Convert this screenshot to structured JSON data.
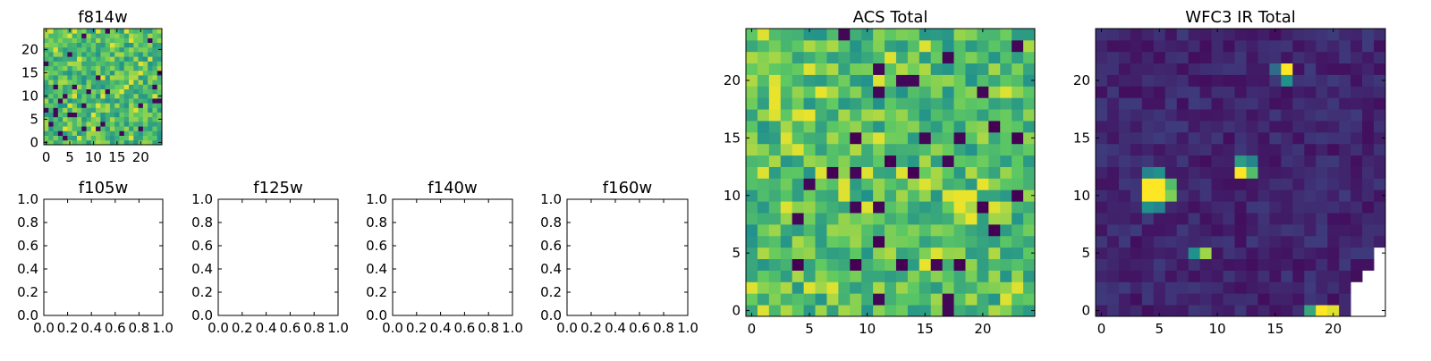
{
  "figure": {
    "background": "#ffffff",
    "colormap": [
      "#440154",
      "#3b528b",
      "#21918c",
      "#5ec962",
      "#fde725"
    ]
  },
  "chart_data": [
    {
      "id": "f814w",
      "type": "heatmap",
      "title": "f814w",
      "grid_size": 25,
      "xlim": [
        -0.5,
        24.5
      ],
      "ylim": [
        -0.5,
        24.5
      ],
      "xticks": [
        0,
        5,
        10,
        15,
        20
      ],
      "yticks": [
        0,
        5,
        10,
        15,
        20
      ],
      "pattern": "acs_noise",
      "seed": 814
    },
    {
      "id": "f105w",
      "type": "empty",
      "title": "f105w",
      "xlim": [
        0,
        1
      ],
      "ylim": [
        0,
        1
      ],
      "xticks": [
        "0.0",
        "0.2",
        "0.4",
        "0.6",
        "0.8",
        "1.0"
      ],
      "yticks": [
        "0.0",
        "0.2",
        "0.4",
        "0.6",
        "0.8",
        "1.0"
      ]
    },
    {
      "id": "f125w",
      "type": "empty",
      "title": "f125w",
      "xlim": [
        0,
        1
      ],
      "ylim": [
        0,
        1
      ],
      "xticks": [
        "0.0",
        "0.2",
        "0.4",
        "0.6",
        "0.8",
        "1.0"
      ],
      "yticks": [
        "0.0",
        "0.2",
        "0.4",
        "0.6",
        "0.8",
        "1.0"
      ]
    },
    {
      "id": "f140w",
      "type": "empty",
      "title": "f140w",
      "xlim": [
        0,
        1
      ],
      "ylim": [
        0,
        1
      ],
      "xticks": [
        "0.0",
        "0.2",
        "0.4",
        "0.6",
        "0.8",
        "1.0"
      ],
      "yticks": [
        "0.0",
        "0.2",
        "0.4",
        "0.6",
        "0.8",
        "1.0"
      ]
    },
    {
      "id": "f160w",
      "type": "empty",
      "title": "f160w",
      "xlim": [
        0,
        1
      ],
      "ylim": [
        0,
        1
      ],
      "xticks": [
        "0.0",
        "0.2",
        "0.4",
        "0.6",
        "0.8",
        "1.0"
      ],
      "yticks": [
        "0.0",
        "0.2",
        "0.4",
        "0.6",
        "0.8",
        "1.0"
      ]
    },
    {
      "id": "acs_total",
      "type": "heatmap",
      "title": "ACS Total",
      "grid_size": 25,
      "xlim": [
        -0.5,
        24.5
      ],
      "ylim": [
        -0.5,
        24.5
      ],
      "xticks": [
        0,
        5,
        10,
        15,
        20
      ],
      "yticks": [
        0,
        5,
        10,
        15,
        20
      ],
      "pattern": "acs_noise",
      "seed": 42,
      "dark_pixels": [
        [
          9,
          4
        ],
        [
          13,
          4
        ],
        [
          18,
          4
        ],
        [
          4,
          4
        ],
        [
          11,
          6
        ],
        [
          21,
          7
        ],
        [
          20,
          9
        ],
        [
          7,
          12
        ],
        [
          14,
          12
        ],
        [
          9,
          15
        ],
        [
          23,
          15
        ],
        [
          21,
          16
        ],
        [
          23,
          10
        ],
        [
          12,
          13
        ]
      ],
      "bright_pixels": [
        [
          18,
          9
        ],
        [
          19,
          10
        ],
        [
          19,
          8
        ],
        [
          18,
          10
        ],
        [
          20,
          11
        ],
        [
          2,
          19
        ],
        [
          2,
          18
        ],
        [
          6,
          19
        ],
        [
          5,
          17
        ],
        [
          15,
          4
        ]
      ]
    },
    {
      "id": "wfc3_ir_total",
      "type": "heatmap",
      "title": "WFC3 IR Total",
      "grid_size": 25,
      "xlim": [
        -0.5,
        24.5
      ],
      "ylim": [
        -0.5,
        24.5
      ],
      "xticks": [
        0,
        5,
        10,
        15,
        20
      ],
      "yticks": [
        0,
        5,
        10,
        15,
        20
      ],
      "pattern": "ir_dim",
      "seed": 160,
      "sources": [
        {
          "x": 4,
          "y": 11,
          "value": 1.0
        },
        {
          "x": 5,
          "y": 11,
          "value": 1.0
        },
        {
          "x": 4,
          "y": 10,
          "value": 1.0
        },
        {
          "x": 5,
          "y": 10,
          "value": 1.0
        },
        {
          "x": 6,
          "y": 10,
          "value": 0.8
        },
        {
          "x": 6,
          "y": 11,
          "value": 0.7
        },
        {
          "x": 5,
          "y": 12,
          "value": 0.5
        },
        {
          "x": 4,
          "y": 12,
          "value": 0.45
        },
        {
          "x": 4,
          "y": 9,
          "value": 0.5
        },
        {
          "x": 5,
          "y": 9,
          "value": 0.45
        },
        {
          "x": 16,
          "y": 21,
          "value": 1.0
        },
        {
          "x": 16,
          "y": 20,
          "value": 0.5
        },
        {
          "x": 15,
          "y": 21,
          "value": 0.35
        },
        {
          "x": 12,
          "y": 12,
          "value": 1.0
        },
        {
          "x": 13,
          "y": 12,
          "value": 0.7
        },
        {
          "x": 12,
          "y": 13,
          "value": 0.55
        },
        {
          "x": 13,
          "y": 13,
          "value": 0.45
        },
        {
          "x": 9,
          "y": 5,
          "value": 0.85
        },
        {
          "x": 8,
          "y": 5,
          "value": 0.5
        },
        {
          "x": 19,
          "y": 0,
          "value": 1.0
        },
        {
          "x": 20,
          "y": 0,
          "value": 0.95
        },
        {
          "x": 18,
          "y": 0,
          "value": 0.6
        }
      ],
      "missing_pixels": [
        [
          24,
          0
        ],
        [
          23,
          0
        ],
        [
          22,
          0
        ],
        [
          24,
          1
        ],
        [
          23,
          1
        ],
        [
          22,
          1
        ],
        [
          24,
          2
        ],
        [
          23,
          2
        ],
        [
          22,
          2
        ],
        [
          24,
          3
        ],
        [
          23,
          3
        ],
        [
          24,
          4
        ],
        [
          24,
          5
        ]
      ]
    }
  ]
}
